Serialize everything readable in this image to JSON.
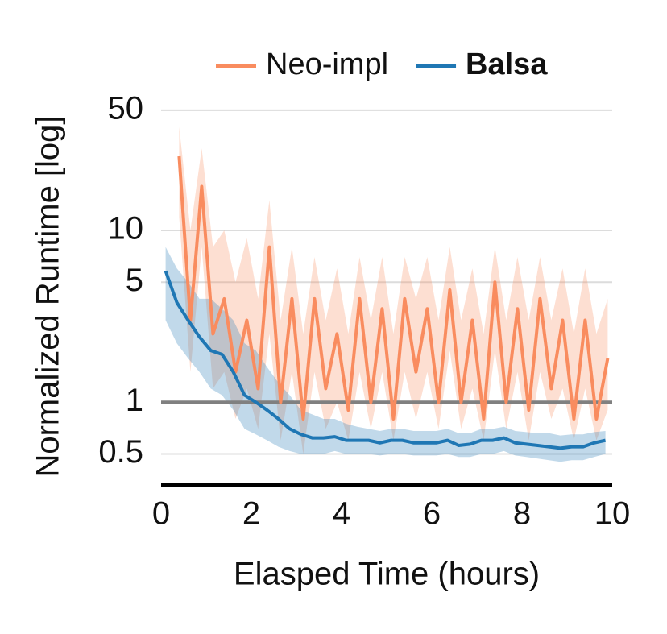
{
  "chart_data": {
    "type": "line",
    "xlabel": "Elasped Time (hours)",
    "ylabel": "Normalized Runtime [log]",
    "xlim": [
      0,
      10
    ],
    "xticks": [
      0,
      2,
      4,
      6,
      8,
      10
    ],
    "ylim": [
      0.33,
      60
    ],
    "yticks": [
      0.5,
      1,
      5,
      10,
      50
    ],
    "log_y": true,
    "grid": true,
    "reference_line": 1,
    "legend": "top-right",
    "series": [
      {
        "name": "Neo-impl",
        "color": "#f98c5f",
        "bold": false,
        "x": [
          0.4,
          0.65,
          0.9,
          1.15,
          1.4,
          1.65,
          1.9,
          2.15,
          2.4,
          2.65,
          2.9,
          3.15,
          3.4,
          3.65,
          3.9,
          4.15,
          4.4,
          4.65,
          4.9,
          5.15,
          5.4,
          5.65,
          5.9,
          6.15,
          6.4,
          6.65,
          6.9,
          7.15,
          7.4,
          7.65,
          7.9,
          8.15,
          8.4,
          8.65,
          8.9,
          9.15,
          9.4,
          9.65,
          9.9
        ],
        "values": [
          27,
          3,
          18,
          2.5,
          4,
          1.5,
          3,
          1.2,
          8,
          1,
          4,
          0.8,
          4,
          1.2,
          2.5,
          0.9,
          4,
          1,
          3.5,
          0.8,
          4,
          1.5,
          3.5,
          1,
          4.5,
          1,
          3,
          0.8,
          5,
          1,
          3.5,
          0.9,
          4,
          1.2,
          3,
          0.8,
          3,
          0.8,
          1.8
        ],
        "upper": [
          40,
          10,
          30,
          8,
          10,
          5,
          9,
          4,
          15,
          3,
          8,
          2.5,
          7,
          3,
          6,
          2.5,
          7,
          3,
          7,
          2.5,
          7,
          4,
          7,
          3,
          8,
          3,
          6,
          2.5,
          8,
          3,
          7,
          3,
          7,
          3,
          6,
          2.5,
          6,
          2.5,
          4
        ],
        "lower": [
          12,
          1.5,
          8,
          1.2,
          1.5,
          0.8,
          1.2,
          0.7,
          2.5,
          0.6,
          1.5,
          0.5,
          1.5,
          0.7,
          1,
          0.6,
          1.5,
          0.7,
          1.5,
          0.6,
          1.5,
          0.8,
          1.5,
          0.7,
          2,
          0.7,
          1.2,
          0.6,
          2,
          0.7,
          1.5,
          0.6,
          1.5,
          0.8,
          1.2,
          0.6,
          1.2,
          0.6,
          0.9
        ]
      },
      {
        "name": "Balsa",
        "color": "#1f77b4",
        "bold": true,
        "x": [
          0.1,
          0.35,
          0.6,
          0.85,
          1.1,
          1.35,
          1.6,
          1.85,
          2.1,
          2.35,
          2.6,
          2.85,
          3.1,
          3.35,
          3.6,
          3.85,
          4.1,
          4.35,
          4.6,
          4.85,
          5.1,
          5.35,
          5.6,
          5.85,
          6.1,
          6.35,
          6.6,
          6.85,
          7.1,
          7.35,
          7.6,
          7.85,
          8.1,
          8.35,
          8.6,
          8.85,
          9.1,
          9.35,
          9.6,
          9.85
        ],
        "values": [
          5.8,
          3.8,
          3,
          2.4,
          2,
          1.9,
          1.5,
          1.1,
          1,
          0.9,
          0.8,
          0.7,
          0.65,
          0.62,
          0.62,
          0.63,
          0.6,
          0.6,
          0.6,
          0.58,
          0.6,
          0.6,
          0.58,
          0.58,
          0.58,
          0.6,
          0.56,
          0.57,
          0.6,
          0.6,
          0.62,
          0.58,
          0.57,
          0.56,
          0.55,
          0.54,
          0.55,
          0.55,
          0.58,
          0.6
        ],
        "upper": [
          8,
          6,
          5,
          4,
          4,
          3.5,
          3,
          2.2,
          2,
          1.6,
          1.3,
          1.1,
          0.9,
          0.85,
          0.8,
          0.8,
          0.75,
          0.72,
          0.7,
          0.68,
          0.7,
          0.7,
          0.68,
          0.68,
          0.68,
          0.7,
          0.66,
          0.66,
          0.7,
          0.7,
          0.72,
          0.68,
          0.67,
          0.66,
          0.66,
          0.64,
          0.65,
          0.65,
          0.67,
          0.68
        ],
        "lower": [
          3,
          2.2,
          1.8,
          1.5,
          1.2,
          1.1,
          0.9,
          0.7,
          0.65,
          0.6,
          0.55,
          0.52,
          0.5,
          0.5,
          0.5,
          0.52,
          0.5,
          0.5,
          0.5,
          0.49,
          0.5,
          0.5,
          0.49,
          0.49,
          0.49,
          0.5,
          0.48,
          0.48,
          0.5,
          0.5,
          0.52,
          0.49,
          0.48,
          0.47,
          0.46,
          0.45,
          0.46,
          0.46,
          0.48,
          0.5
        ]
      }
    ]
  }
}
